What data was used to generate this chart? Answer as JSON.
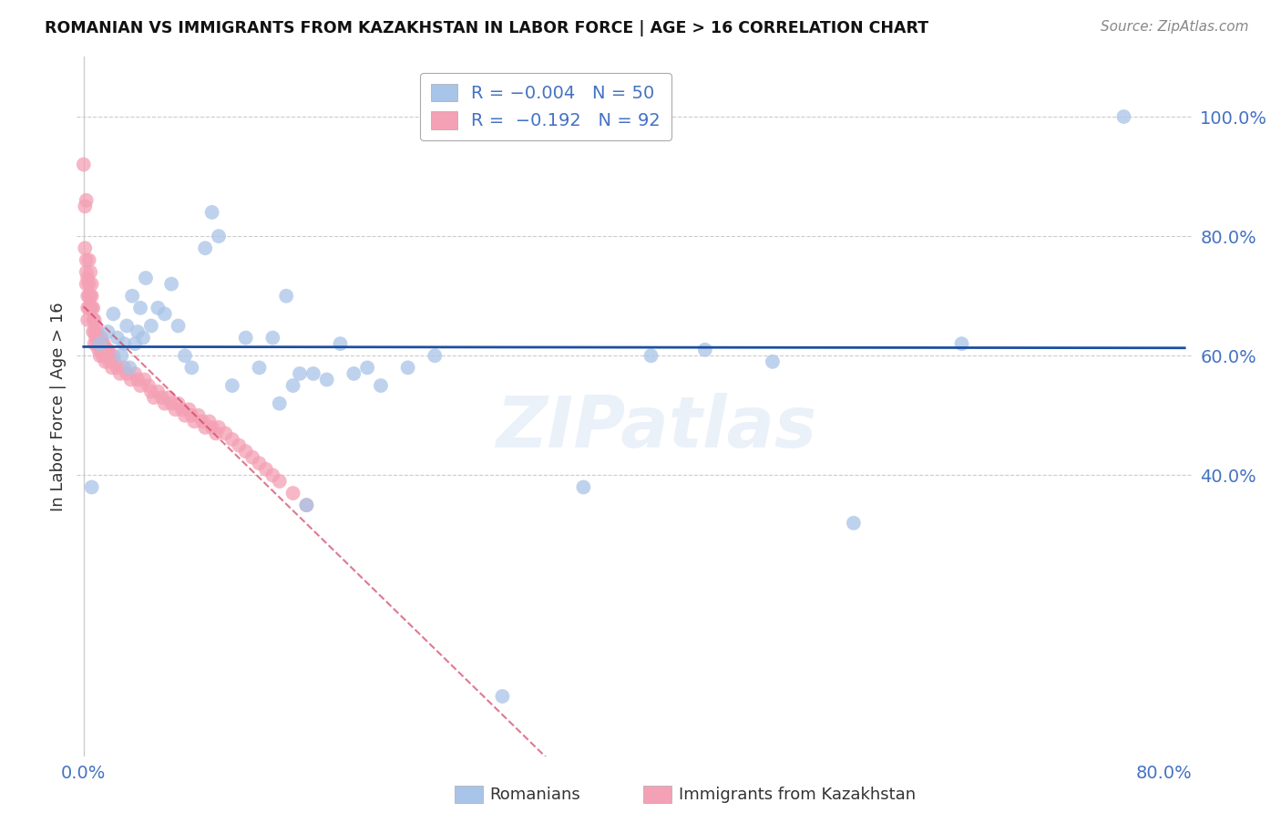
{
  "title": "ROMANIAN VS IMMIGRANTS FROM KAZAKHSTAN IN LABOR FORCE | AGE > 16 CORRELATION CHART",
  "source": "Source: ZipAtlas.com",
  "ylabel": "In Labor Force | Age > 16",
  "right_yticks": [
    0.4,
    0.6,
    0.8,
    1.0
  ],
  "right_yticklabels": [
    "40.0%",
    "60.0%",
    "80.0%",
    "100.0%"
  ],
  "xlim": [
    -0.005,
    0.82
  ],
  "ylim": [
    -0.07,
    1.1
  ],
  "blue_color": "#a8c4e8",
  "pink_color": "#f4a0b5",
  "blue_line_color": "#1a4fa0",
  "pink_line_color": "#d04060",
  "watermark": "ZIPatlas",
  "blue_line_y": 0.615,
  "romanians_x": [
    0.006,
    0.012,
    0.018,
    0.022,
    0.025,
    0.028,
    0.03,
    0.032,
    0.034,
    0.036,
    0.038,
    0.04,
    0.042,
    0.044,
    0.046,
    0.05,
    0.055,
    0.06,
    0.065,
    0.07,
    0.075,
    0.08,
    0.09,
    0.095,
    0.1,
    0.11,
    0.12,
    0.13,
    0.14,
    0.145,
    0.15,
    0.155,
    0.16,
    0.165,
    0.17,
    0.18,
    0.19,
    0.2,
    0.21,
    0.22,
    0.24,
    0.26,
    0.31,
    0.37,
    0.42,
    0.46,
    0.51,
    0.57,
    0.65,
    0.77
  ],
  "romanians_y": [
    0.38,
    0.62,
    0.64,
    0.67,
    0.63,
    0.6,
    0.62,
    0.65,
    0.58,
    0.7,
    0.62,
    0.64,
    0.68,
    0.63,
    0.73,
    0.65,
    0.68,
    0.67,
    0.72,
    0.65,
    0.6,
    0.58,
    0.78,
    0.84,
    0.8,
    0.55,
    0.63,
    0.58,
    0.63,
    0.52,
    0.7,
    0.55,
    0.57,
    0.35,
    0.57,
    0.56,
    0.62,
    0.57,
    0.58,
    0.55,
    0.58,
    0.6,
    0.03,
    0.38,
    0.6,
    0.61,
    0.59,
    0.32,
    0.62,
    1.0
  ],
  "kaz_x": [
    0.0,
    0.001,
    0.001,
    0.002,
    0.002,
    0.002,
    0.002,
    0.003,
    0.003,
    0.003,
    0.003,
    0.004,
    0.004,
    0.004,
    0.004,
    0.005,
    0.005,
    0.005,
    0.006,
    0.006,
    0.006,
    0.007,
    0.007,
    0.007,
    0.008,
    0.008,
    0.008,
    0.009,
    0.009,
    0.01,
    0.01,
    0.011,
    0.011,
    0.012,
    0.012,
    0.013,
    0.013,
    0.014,
    0.014,
    0.015,
    0.015,
    0.016,
    0.016,
    0.017,
    0.018,
    0.019,
    0.02,
    0.021,
    0.022,
    0.023,
    0.025,
    0.027,
    0.03,
    0.032,
    0.035,
    0.038,
    0.04,
    0.042,
    0.045,
    0.048,
    0.05,
    0.052,
    0.055,
    0.058,
    0.06,
    0.063,
    0.065,
    0.068,
    0.07,
    0.073,
    0.075,
    0.078,
    0.08,
    0.082,
    0.085,
    0.088,
    0.09,
    0.093,
    0.095,
    0.098,
    0.1,
    0.105,
    0.11,
    0.115,
    0.12,
    0.125,
    0.13,
    0.135,
    0.14,
    0.145,
    0.155,
    0.165
  ],
  "kaz_y": [
    0.92,
    0.85,
    0.78,
    0.86,
    0.76,
    0.74,
    0.72,
    0.73,
    0.7,
    0.68,
    0.66,
    0.76,
    0.72,
    0.7,
    0.68,
    0.74,
    0.7,
    0.68,
    0.72,
    0.7,
    0.68,
    0.68,
    0.66,
    0.64,
    0.66,
    0.64,
    0.62,
    0.65,
    0.63,
    0.64,
    0.62,
    0.63,
    0.61,
    0.62,
    0.6,
    0.63,
    0.61,
    0.62,
    0.6,
    0.62,
    0.6,
    0.61,
    0.59,
    0.6,
    0.61,
    0.59,
    0.6,
    0.58,
    0.6,
    0.59,
    0.58,
    0.57,
    0.58,
    0.57,
    0.56,
    0.57,
    0.56,
    0.55,
    0.56,
    0.55,
    0.54,
    0.53,
    0.54,
    0.53,
    0.52,
    0.53,
    0.52,
    0.51,
    0.52,
    0.51,
    0.5,
    0.51,
    0.5,
    0.49,
    0.5,
    0.49,
    0.48,
    0.49,
    0.48,
    0.47,
    0.48,
    0.47,
    0.46,
    0.45,
    0.44,
    0.43,
    0.42,
    0.41,
    0.4,
    0.39,
    0.37,
    0.35
  ]
}
